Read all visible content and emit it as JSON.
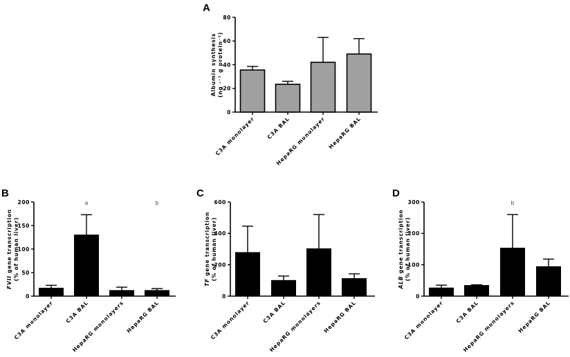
{
  "figure": {
    "panels": [
      "A",
      "B",
      "C",
      "D"
    ]
  },
  "chart_data": [
    {
      "panel": "A",
      "type": "bar",
      "title": "",
      "ylabel_line1": "Albumin synthesis",
      "ylabel_line2": "(ng ·⁻¹ g protein⁻¹)",
      "xlabel": "",
      "categories": [
        "C3A monolayer",
        "C3A BAL",
        "HepaRG monolayer",
        "HepaRG BAL"
      ],
      "values": [
        35.5,
        23.5,
        42,
        49
      ],
      "error_upper": [
        38.5,
        26,
        63,
        62
      ],
      "ylim": [
        0,
        80
      ],
      "yticks": [
        0,
        20,
        40,
        60,
        80
      ],
      "bar_color": "#a0a0a0",
      "annotations": [],
      "grid": false,
      "legend": null
    },
    {
      "panel": "B",
      "type": "bar",
      "title": "",
      "ylabel_italic": "FVII",
      "ylabel_line1": " gene transcription",
      "ylabel_line2": "(% of human liver)",
      "xlabel": "",
      "categories": [
        "C3A monolayer",
        "C3A BAL",
        "HepaRG monolayers",
        "HepaRG BAL"
      ],
      "values": [
        17,
        130,
        12,
        12
      ],
      "error_upper": [
        23,
        173,
        19,
        16
      ],
      "ylim": [
        0,
        200
      ],
      "yticks": [
        0,
        50,
        100,
        150,
        200
      ],
      "bar_color": "#000000",
      "annotations": [
        {
          "bar": 1,
          "text": "a"
        },
        {
          "bar": 3,
          "text": "b"
        }
      ],
      "grid": false,
      "legend": null
    },
    {
      "panel": "C",
      "type": "bar",
      "title": "",
      "ylabel_italic": "TF",
      "ylabel_line1": " gene transcription",
      "ylabel_line2": "(% of human liver)",
      "xlabel": "",
      "categories": [
        "C3A monolayer",
        "C3A BAL",
        "HepaRG monolayers",
        "HepaRG BAL"
      ],
      "values": [
        278,
        100,
        302,
        112
      ],
      "error_upper": [
        446,
        128,
        520,
        142
      ],
      "ylim": [
        0,
        600
      ],
      "yticks": [
        0,
        200,
        400,
        600
      ],
      "bar_color": "#000000",
      "annotations": [],
      "grid": false,
      "legend": null
    },
    {
      "panel": "D",
      "type": "bar",
      "title": "",
      "ylabel_italic": "ALB",
      "ylabel_line1": " gene transcription",
      "ylabel_line2": "(% of human liver)",
      "xlabel": "",
      "categories": [
        "C3A monolayer",
        "C3A BAL",
        "HepaRG monolayers",
        "HepaRG BAL"
      ],
      "values": [
        26,
        34,
        153,
        94
      ],
      "error_upper": [
        35,
        36,
        260,
        118
      ],
      "ylim": [
        0,
        300
      ],
      "yticks": [
        0,
        100,
        200,
        300
      ],
      "bar_color": "#000000",
      "annotations": [
        {
          "bar": 2,
          "text": "b"
        }
      ],
      "grid": false,
      "legend": null
    }
  ]
}
